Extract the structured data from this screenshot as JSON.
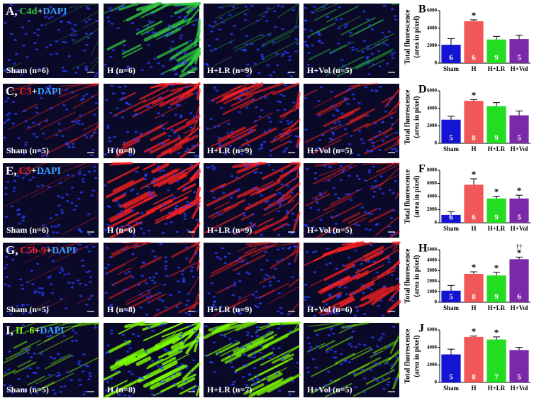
{
  "panels": [
    {
      "letter": "A,",
      "stain": "C4d",
      "stain_color": "#2ecc40",
      "joiner": "+",
      "counterstain": "DAPI",
      "groups": [
        "Sham (n=6)",
        "H (n=6)",
        "H+LR (n=9)",
        "H+Vol (n=5)"
      ]
    },
    {
      "letter": "C,",
      "stain": "C3",
      "stain_color": "#ff2020",
      "joiner": "+",
      "counterstain": "DAPI",
      "groups": [
        "Sham (n=5)",
        "H (n=8)",
        "H+LR (n=9)",
        "H+Vol (n=5)"
      ]
    },
    {
      "letter": "E,",
      "stain": "C5",
      "stain_color": "#ff2020",
      "joiner": "+",
      "counterstain": "DAPI",
      "groups": [
        "Sham (n=6)",
        "H (n=6)",
        "H+LR (n=9)",
        "H+Vol (n=5)"
      ]
    },
    {
      "letter": "G,",
      "stain": "C5b-9",
      "stain_color": "#ff2020",
      "joiner": "+",
      "counterstain": "DAPI",
      "groups": [
        "Sham (n=5)",
        "H (n=8)",
        "H+LR (n=9)",
        "H+Vol (n=6)"
      ]
    },
    {
      "letter": "I,",
      "stain": "IL-6",
      "stain_color": "#7CFC00",
      "joiner": "+",
      "counterstain": "DAPI",
      "groups": [
        "Sham (n=5)",
        "H (n=8)",
        "H+LR (n=7)",
        "H+Vol (n=5)"
      ]
    }
  ],
  "chart_data": [
    {
      "type": "bar",
      "panel": "B",
      "ylabel": [
        "Total fluorescence",
        "(area in pixel)"
      ],
      "categories": [
        "Sham",
        "H",
        "H+LR",
        "H+Vol"
      ],
      "values": [
        2100,
        4800,
        2700,
        2750
      ],
      "errors": [
        700,
        150,
        350,
        450
      ],
      "n_labels": [
        "6",
        "6",
        "9",
        "5"
      ],
      "annotations": [
        null,
        "*",
        null,
        null
      ],
      "colors": [
        "#1414d2",
        "#f25757",
        "#22dd22",
        "#7a2aa8"
      ],
      "ylim": [
        0,
        6000
      ],
      "yticks": [
        0,
        2000,
        4000,
        6000
      ]
    },
    {
      "type": "bar",
      "panel": "D",
      "ylabel": [
        "Total fluorescence",
        "(area in pixel)"
      ],
      "categories": [
        "Sham",
        "H",
        "H+LR",
        "H+Vol"
      ],
      "values": [
        2700,
        4850,
        4250,
        3200
      ],
      "errors": [
        400,
        150,
        400,
        500
      ],
      "n_labels": [
        "5",
        "8",
        "9",
        "5"
      ],
      "annotations": [
        null,
        "*",
        null,
        null
      ],
      "colors": [
        "#1414d2",
        "#f25757",
        "#22dd22",
        "#7a2aa8"
      ],
      "ylim": [
        0,
        6000
      ],
      "yticks": [
        0,
        2000,
        4000,
        6000
      ]
    },
    {
      "type": "bar",
      "panel": "F",
      "ylabel": [
        "Total fluorescence",
        "(area in pixel)"
      ],
      "categories": [
        "Sham",
        "H",
        "H+LR",
        "H+Vol"
      ],
      "values": [
        1200,
        5800,
        3700,
        3700
      ],
      "errors": [
        500,
        900,
        350,
        500
      ],
      "n_labels": [
        "6",
        "6",
        "9",
        "5"
      ],
      "annotations": [
        null,
        "*",
        "*",
        "*"
      ],
      "colors": [
        "#1414d2",
        "#f25757",
        "#22dd22",
        "#7a2aa8"
      ],
      "ylim": [
        0,
        8000
      ],
      "yticks": [
        0,
        2000,
        4000,
        6000,
        8000
      ]
    },
    {
      "type": "bar",
      "panel": "H",
      "ylabel": [
        "Total fluorescence",
        "(area in pixel)"
      ],
      "categories": [
        "Sham",
        "H",
        "H+LR",
        "H+Vol"
      ],
      "values": [
        1100,
        2700,
        2550,
        4100
      ],
      "errors": [
        500,
        200,
        300,
        200
      ],
      "n_labels": [
        "5",
        "8",
        "9",
        "6"
      ],
      "annotations": [
        null,
        "*",
        "*",
        "*"
      ],
      "extra_annotations": [
        null,
        null,
        null,
        "††"
      ],
      "colors": [
        "#1414d2",
        "#f25757",
        "#22dd22",
        "#7a2aa8"
      ],
      "ylim": [
        0,
        5000
      ],
      "yticks": [
        0,
        1000,
        2000,
        3000,
        4000,
        5000
      ]
    },
    {
      "type": "bar",
      "panel": "J",
      "ylabel": [
        "Total fluorescence",
        "(area in pixel)"
      ],
      "categories": [
        "Sham",
        "H",
        "H+LR",
        "H+Vol"
      ],
      "values": [
        3200,
        5200,
        4900,
        3700
      ],
      "errors": [
        600,
        100,
        300,
        300
      ],
      "n_labels": [
        "5",
        "8",
        "7",
        "5"
      ],
      "annotations": [
        null,
        "*",
        "*",
        null
      ],
      "colors": [
        "#1414d2",
        "#f25757",
        "#22dd22",
        "#7a2aa8"
      ],
      "ylim": [
        0,
        6000
      ],
      "yticks": [
        0,
        2000,
        4000,
        6000
      ]
    }
  ]
}
